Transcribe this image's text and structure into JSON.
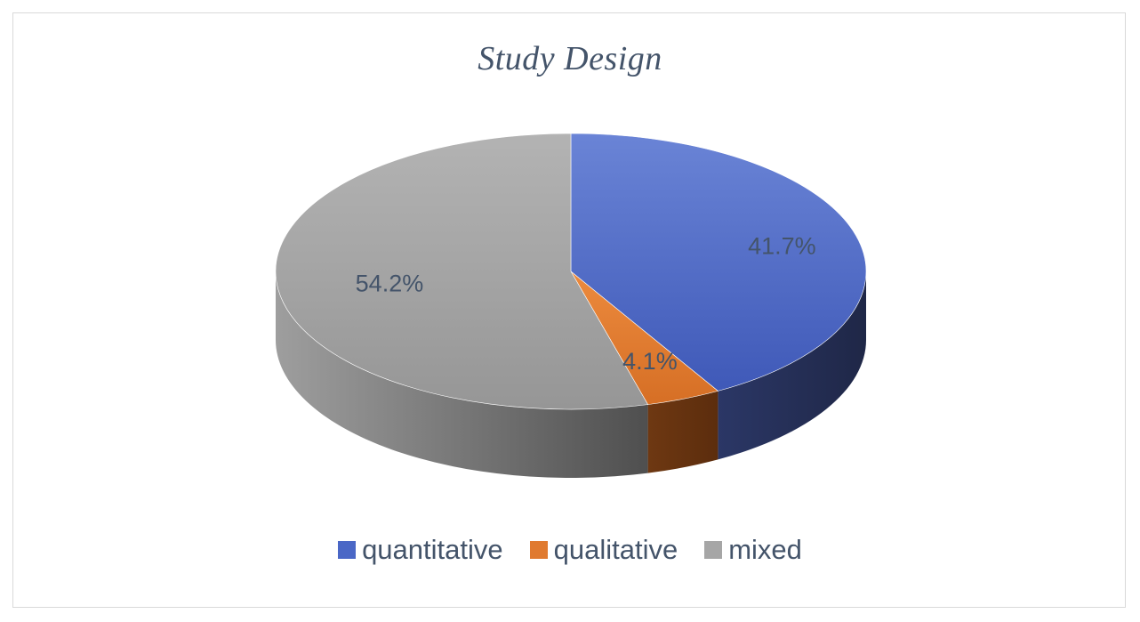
{
  "chart_data": {
    "type": "pie",
    "title": "Study Design",
    "style": "3d",
    "legend_position": "bottom",
    "categories": [
      "quantitative",
      "qualitative",
      "mixed"
    ],
    "values": [
      41.7,
      4.1,
      54.2
    ],
    "data_labels": [
      "41.7%",
      "4.1%",
      "54.2%"
    ],
    "colors": [
      "#4a67c6",
      "#e07a30",
      "#a6a6a6"
    ],
    "side_colors": [
      "#27315a",
      "#6a3310",
      "#6b6b6b"
    ]
  }
}
